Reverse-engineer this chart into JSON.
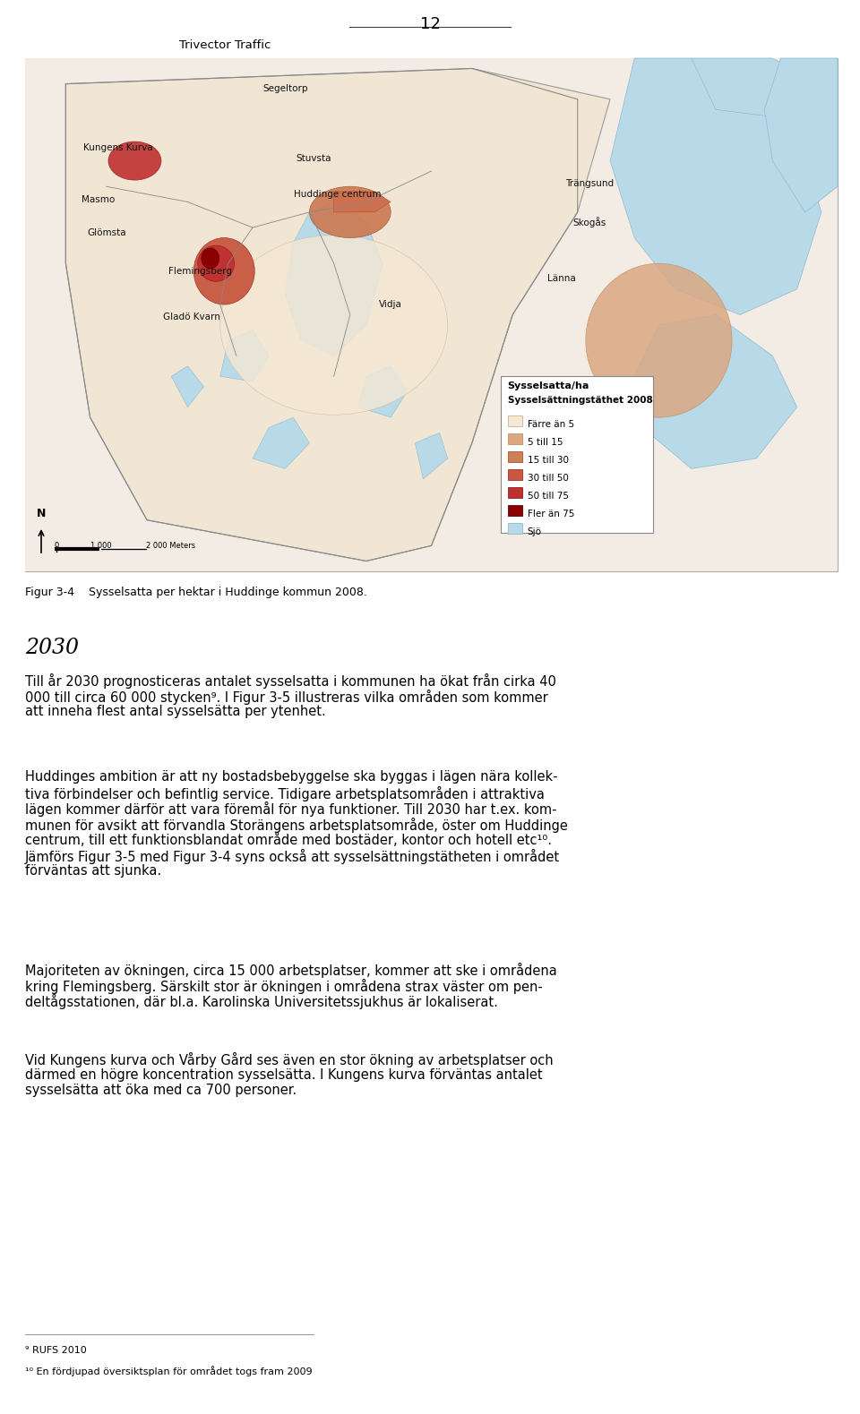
{
  "page_number": "12",
  "header_company": "Trivector Traffic",
  "figure_caption": "Figur 3-4    Sysselsatta per hektar i Huddinge kommun 2008.",
  "section_heading": "2030",
  "para1": "Till år 2030 prognosticeras antalet sysselsatta i kommunen ha ökat från cirka 40\n000 till circa 60 000 stycken⁹. I Figur 3-5 illustreras vilka områden som kommer\natt inneha flest antal sysselsätta per ytenhet.",
  "para2_line1": "Huddinges ambition är att ny bostadsbebyggelse ska byggas i lägen nära kollek-",
  "para2_line2": "tiva förbindelser och befintlig service. Tidigare arbetsplatsområden i attraktiva",
  "para2_line3": "lägen kommer därför att vara föremål för nya funktioner. Till 2030 har t.ex. kom-",
  "para2_line4": "munen för avsikt att förvandla Storängens arbetsplatsområde, öster om Huddinge",
  "para2_line5": "centrum, till ett funktionsblandat område med bostäder, kontor och hotell etc¹⁰.",
  "para2_line6": "Jämförs Figur 3-5 med Figur 3-4 syns också att sysselsättningstätheten i området",
  "para2_line7": "förväntas att sjunka.",
  "para3": "Majoriteten av ökningen, circa 15 000 arbetsplatser, kommer att ske i områdena\nkring Flemingsberg. Särskilt stor är ökningen i områdena strax väster om pen-\ndeltågsstationen, där bl.a. Karolinska Universitetssjukhus är lokaliserat.",
  "para4": "Vid Kungens kurva och Vårby Gård ses även en stor ökning av arbetsplatser och\ndärmed en högre koncentration sysselsätta. I Kungens kurva förväntas antalet\nsysselsätta att öka med ca 700 personer.",
  "footnote1": "⁹ RUFS 2010",
  "footnote2": "¹⁰ En fördjupad översiktsplan för området togs fram 2009",
  "bg_color": "#ffffff",
  "text_color": "#000000",
  "body_font_size": 10.5,
  "heading_font_size": 17,
  "caption_font_size": 9,
  "footnote_font_size": 8,
  "header_fontsize": 9.5,
  "page_num_fontsize": 13
}
